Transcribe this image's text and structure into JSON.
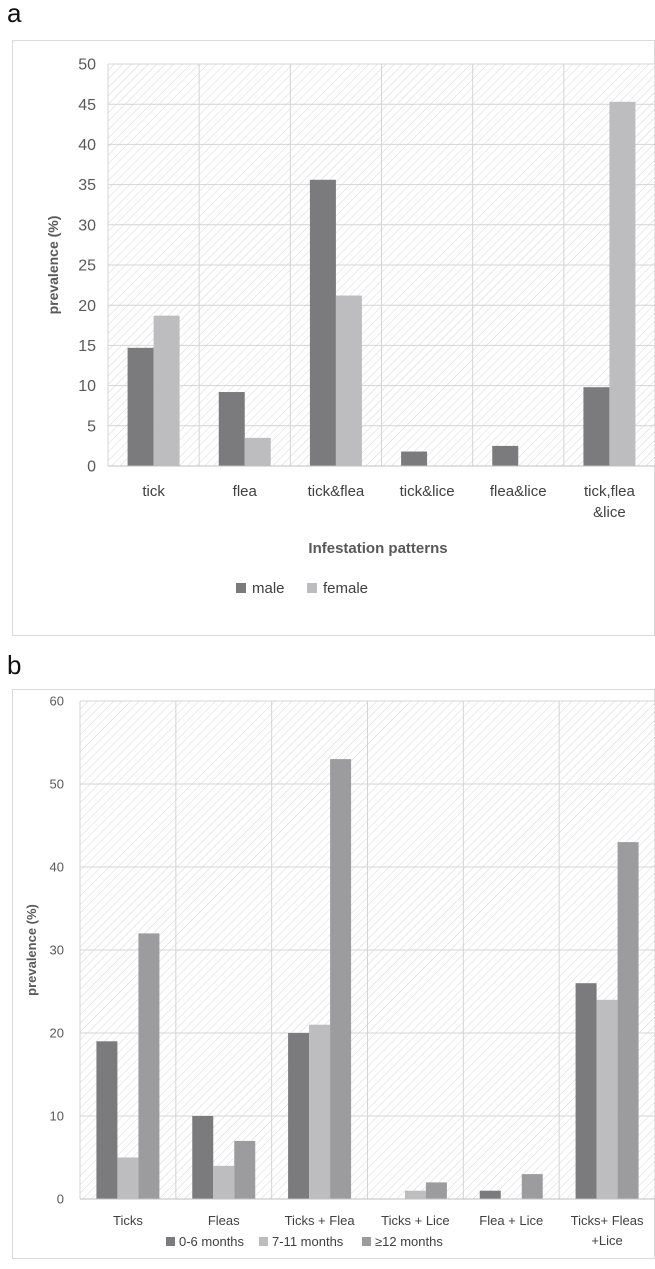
{
  "panels": [
    {
      "letter": "a"
    },
    {
      "letter": "b"
    }
  ],
  "chart_data": [
    {
      "type": "bar",
      "title": "",
      "xlabel": "Infestation patterns",
      "ylabel": "prevalence (%)",
      "ylim": [
        0,
        50
      ],
      "yticks": [
        0,
        5,
        10,
        15,
        20,
        25,
        30,
        35,
        40,
        45,
        50
      ],
      "grid": true,
      "legend_position": "bottom",
      "categories": [
        [
          "tick"
        ],
        [
          "flea"
        ],
        [
          "tick&flea"
        ],
        [
          "tick&lice"
        ],
        [
          "flea&lice"
        ],
        [
          "tick,flea",
          "&lice"
        ]
      ],
      "series": [
        {
          "name": "male",
          "color": "#7b7b7d",
          "values": [
            14.7,
            9.2,
            35.6,
            1.8,
            2.5,
            9.8
          ]
        },
        {
          "name": "female",
          "color": "#bdbdbf",
          "values": [
            18.7,
            3.5,
            21.2,
            0,
            0,
            45.3
          ]
        }
      ]
    },
    {
      "type": "bar",
      "title": "",
      "xlabel": "",
      "ylabel": "prevalence (%)",
      "ylim": [
        0,
        60
      ],
      "yticks": [
        0,
        10,
        20,
        30,
        40,
        50,
        60
      ],
      "grid": true,
      "legend_position": "bottom",
      "categories": [
        [
          "Ticks"
        ],
        [
          "Fleas"
        ],
        [
          "Ticks + Flea"
        ],
        [
          "Ticks + Lice"
        ],
        [
          "Flea + Lice"
        ],
        [
          "Ticks+ Fleas",
          "+Lice"
        ]
      ],
      "series": [
        {
          "name": "0-6 months",
          "color": "#7b7b7d",
          "values": [
            19,
            10,
            20,
            0,
            1,
            26
          ]
        },
        {
          "name": "7-11 months",
          "color": "#bdbdbf",
          "values": [
            5,
            4,
            21,
            1,
            0,
            24
          ]
        },
        {
          "name": "≥12 months",
          "color": "#9c9c9e",
          "values": [
            32,
            7,
            53,
            2,
            3,
            43
          ]
        }
      ]
    }
  ]
}
